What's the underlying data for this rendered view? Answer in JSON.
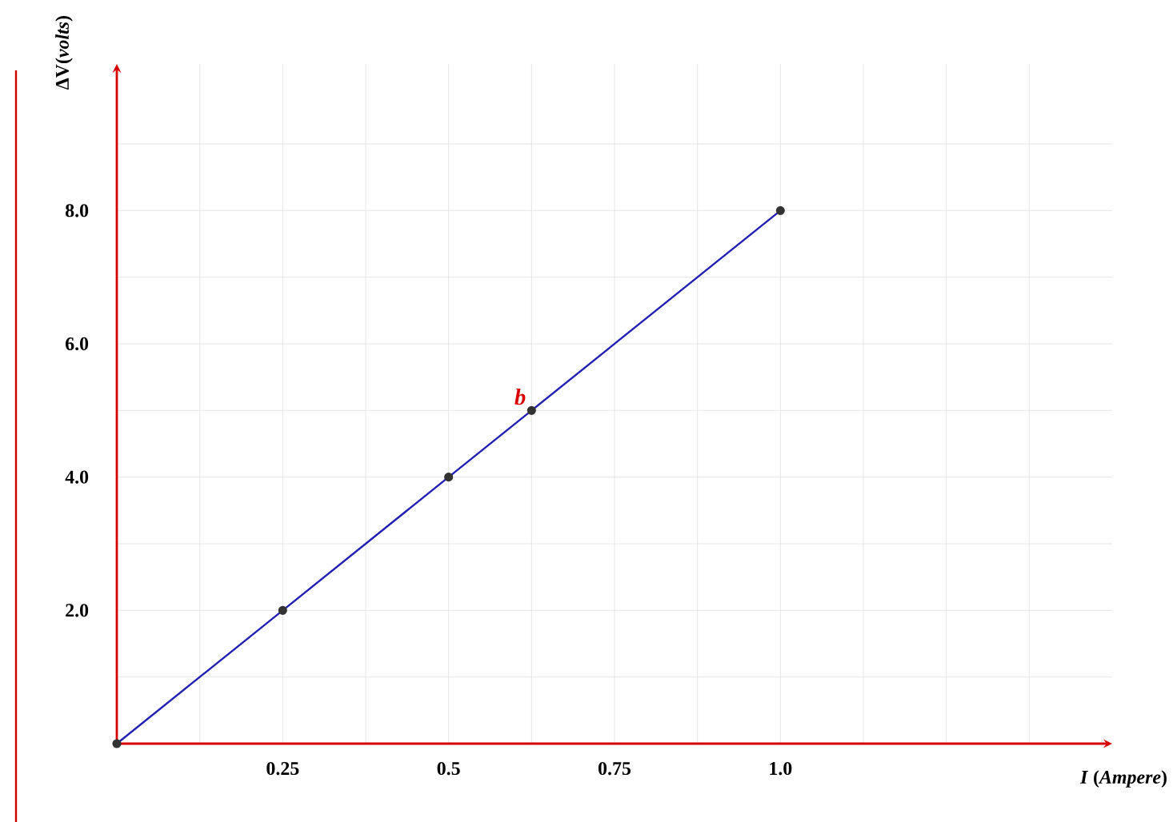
{
  "chart_data": {
    "type": "line",
    "xlabel": "*I* (*Ampere*)",
    "ylabel": "ΔV(*volts*)",
    "x": [
      0,
      0.25,
      0.5,
      0.625,
      1.0
    ],
    "series": [
      {
        "color": "#1f1fb4",
        "values": [
          0,
          2,
          4,
          5,
          8
        ]
      }
    ],
    "marker": "circle",
    "line_style": "solid",
    "grid": true,
    "xlim": [
      0,
      1.5
    ],
    "ylim": [
      0,
      10.2
    ],
    "xticks": [
      {
        "value": 0.125,
        "label": null
      },
      0.25,
      {
        "value": 0.375,
        "label": null
      },
      0.5,
      {
        "value": 0.625,
        "label": null
      },
      0.75,
      {
        "value": 0.875,
        "label": null
      },
      {
        "value": 1.0,
        "label": "1.0"
      },
      {
        "value": 1.125,
        "label": null
      },
      {
        "value": 1.25,
        "label": null
      },
      {
        "value": 1.375,
        "label": null
      }
    ],
    "yticks": [
      {
        "value": 1,
        "label": null
      },
      {
        "value": 2,
        "label": "2.0"
      },
      {
        "value": 3,
        "label": null
      },
      {
        "value": 4,
        "label": "4.0"
      },
      {
        "value": 5,
        "label": null
      },
      {
        "value": 6,
        "label": "6.0"
      },
      {
        "value": 7,
        "label": null
      },
      {
        "value": 8,
        "label": "8.0"
      },
      {
        "value": 9,
        "label": null
      }
    ],
    "annotations": [
      {
        "text": "*b*",
        "x": 0.625,
        "y": 5
      }
    ]
  }
}
